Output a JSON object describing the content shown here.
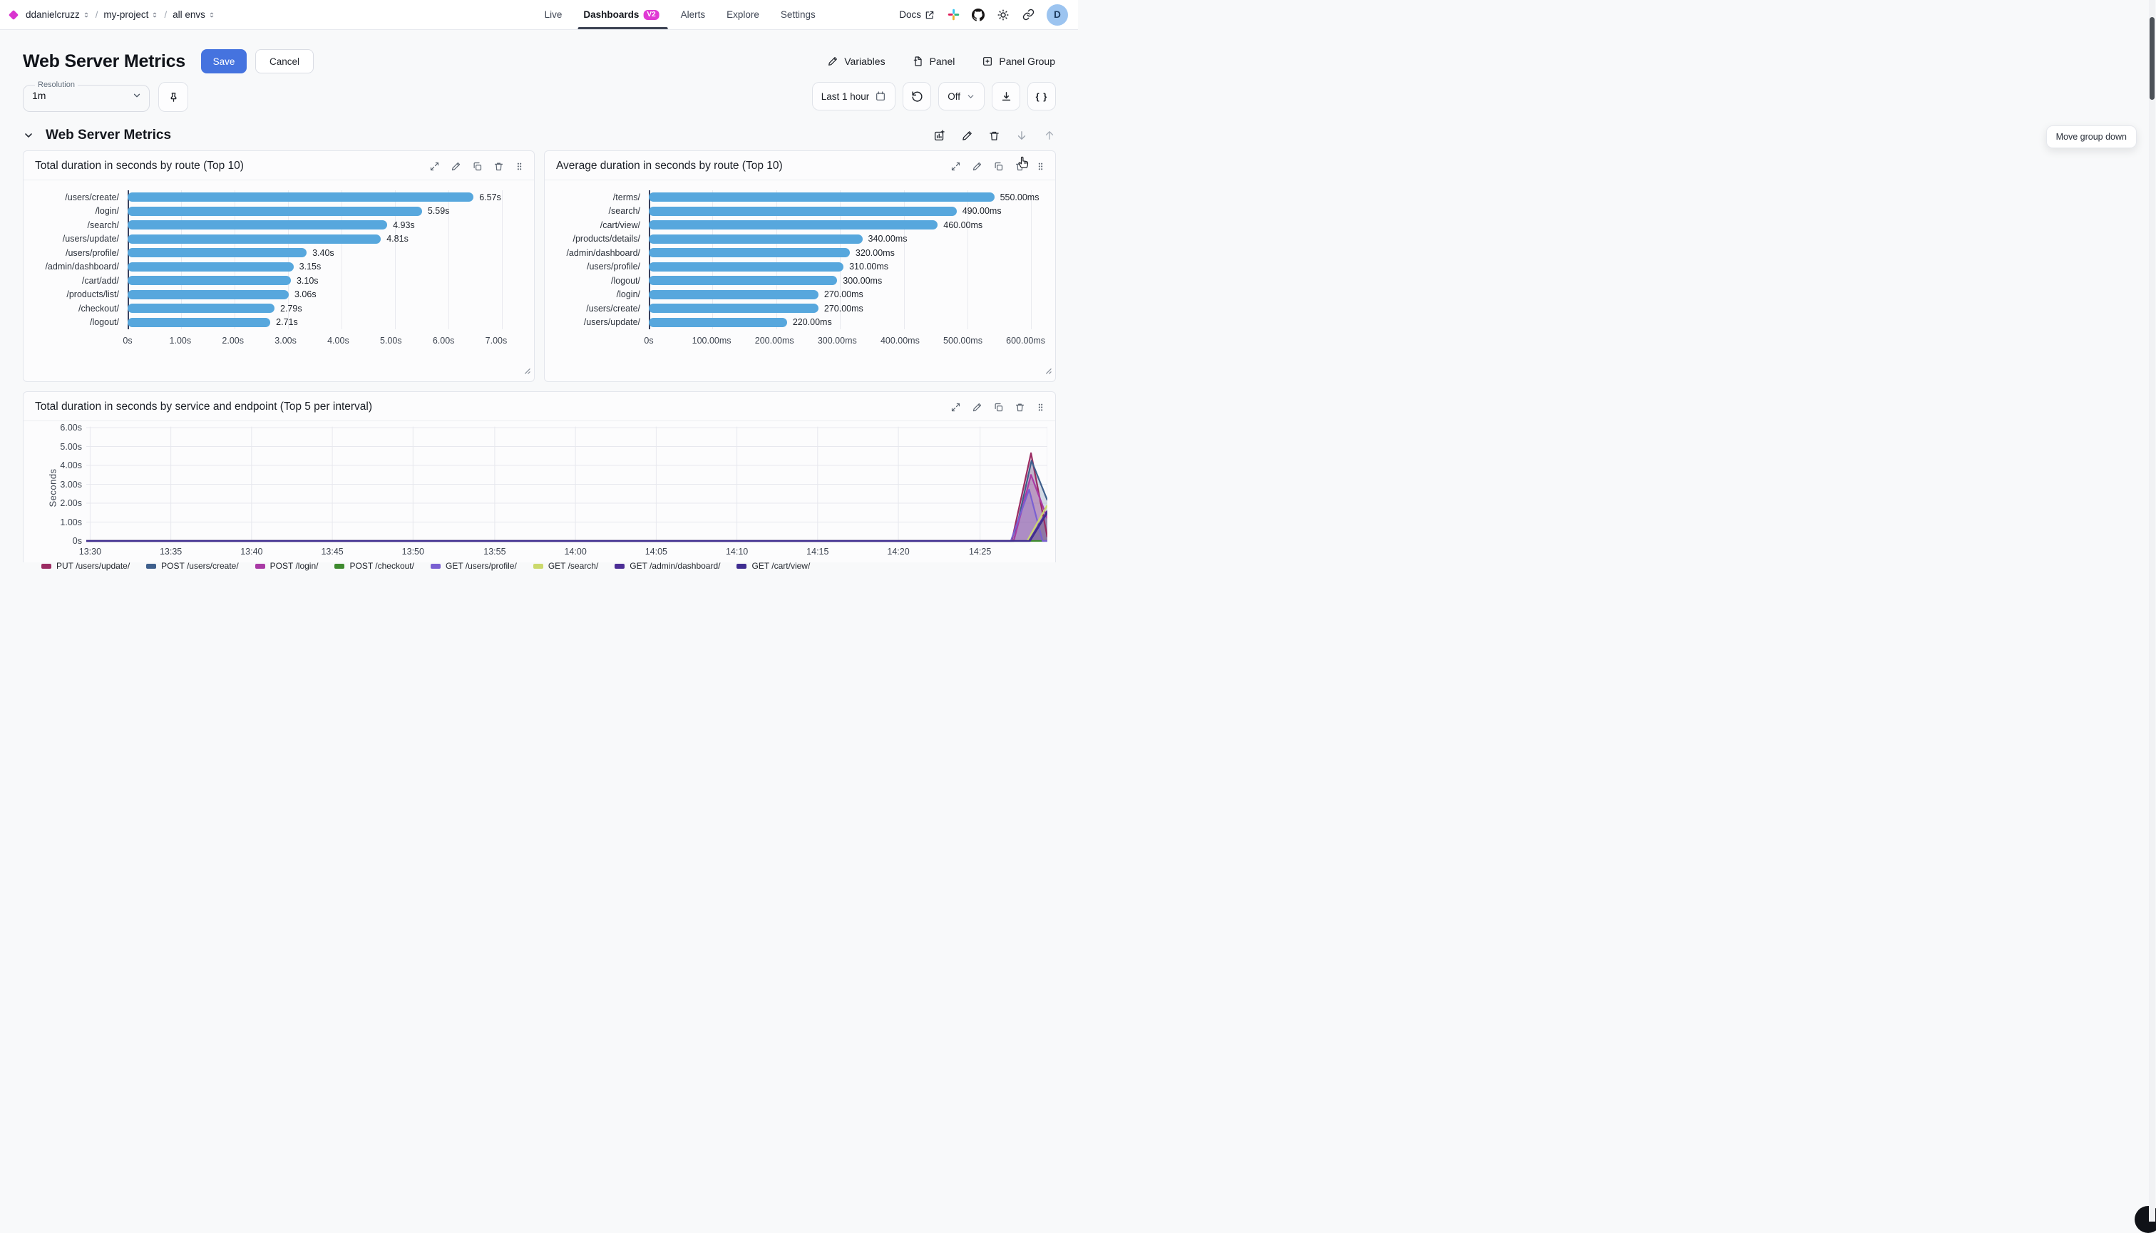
{
  "nav": {
    "breadcrumb": [
      {
        "label": "ddanielcruzz"
      },
      {
        "label": "my-project"
      },
      {
        "label": "all envs"
      }
    ],
    "tabs": [
      {
        "label": "Live"
      },
      {
        "label": "Dashboards",
        "badge": "V2",
        "active": true
      },
      {
        "label": "Alerts"
      },
      {
        "label": "Explore"
      },
      {
        "label": "Settings"
      }
    ],
    "docs_label": "Docs",
    "avatar_initial": "D"
  },
  "header": {
    "title": "Web Server Metrics",
    "save_label": "Save",
    "cancel_label": "Cancel",
    "actions": [
      {
        "label": "Variables"
      },
      {
        "label": "Panel"
      },
      {
        "label": "Panel Group"
      }
    ]
  },
  "toolbar": {
    "resolution_label": "Resolution",
    "resolution_value": "1m",
    "time_range": "Last 1 hour",
    "autorefresh_value": "Off",
    "braces_label": "{ }",
    "tooltip": "Move group down"
  },
  "group": {
    "title": "Web Server Metrics"
  },
  "colors": {
    "accent_blue": "#4573df",
    "brand_magenta": "#e03ad4",
    "bar_blue": "#57a7dd"
  },
  "chart_data": [
    {
      "type": "bar",
      "title": "Total duration in seconds by route (Top 10)",
      "orientation": "horizontal",
      "bar_color": "#57a7dd",
      "axis_max": 7.42,
      "categories": [
        "/users/create/",
        "/login/",
        "/search/",
        "/users/update/",
        "/users/profile/",
        "/admin/dashboard/",
        "/cart/add/",
        "/products/list/",
        "/checkout/",
        "/logout/"
      ],
      "values": [
        6.57,
        5.59,
        4.93,
        4.81,
        3.4,
        3.15,
        3.1,
        3.06,
        2.79,
        2.71
      ],
      "value_labels": [
        "6.57s",
        "5.59s",
        "4.93s",
        "4.81s",
        "3.40s",
        "3.15s",
        "3.10s",
        "3.06s",
        "2.79s",
        "2.71s"
      ],
      "x_ticks": {
        "values": [
          0,
          1,
          2,
          3,
          4,
          5,
          6,
          7
        ],
        "labels": [
          "0s",
          "1.00s",
          "2.00s",
          "3.00s",
          "4.00s",
          "5.00s",
          "6.00s",
          "7.00s"
        ]
      }
    },
    {
      "type": "bar",
      "title": "Average duration in seconds by route (Top 10)",
      "orientation": "horizontal",
      "bar_color": "#57a7dd",
      "axis_max": 622,
      "categories": [
        "/terms/",
        "/search/",
        "/cart/view/",
        "/products/details/",
        "/admin/dashboard/",
        "/users/profile/",
        "/logout/",
        "/login/",
        "/users/create/",
        "/users/update/"
      ],
      "values": [
        550,
        490,
        460,
        340,
        320,
        310,
        300,
        270,
        270,
        220
      ],
      "value_labels": [
        "550.00ms",
        "490.00ms",
        "460.00ms",
        "340.00ms",
        "320.00ms",
        "310.00ms",
        "300.00ms",
        "270.00ms",
        "270.00ms",
        "220.00ms"
      ],
      "x_ticks": {
        "values": [
          0,
          100,
          200,
          300,
          400,
          500,
          600
        ],
        "labels": [
          "0s",
          "100.00ms",
          "200.00ms",
          "300.00ms",
          "400.00ms",
          "500.00ms",
          "600.00ms"
        ]
      }
    },
    {
      "type": "area",
      "title": "Total duration in seconds by service and endpoint (Top 5 per interval)",
      "ylabel": "Seconds",
      "y_max": 6.2,
      "y_ticks": {
        "values": [
          0,
          1,
          2,
          3,
          4,
          5,
          6
        ],
        "labels": [
          "0s",
          "1.00s",
          "2.00s",
          "3.00s",
          "4.00s",
          "5.00s",
          "6.00s"
        ]
      },
      "x_ticks": {
        "labels": [
          "13:30",
          "13:35",
          "13:40",
          "13:45",
          "13:50",
          "13:55",
          "14:00",
          "14:05",
          "14:10",
          "14:15",
          "14:20",
          "14:25"
        ],
        "positions_pct": [
          0.4,
          8.8,
          17.2,
          25.6,
          34.0,
          42.5,
          50.9,
          59.3,
          67.7,
          76.1,
          84.5,
          93.0
        ]
      },
      "legend_position": "bottom",
      "grid": true,
      "series": [
        {
          "name": "PUT /users/update/",
          "color": "#9b2c63",
          "points_pct": [
            [
              0,
              0
            ],
            [
              96.3,
              0
            ],
            [
              98.3,
              4.65
            ],
            [
              100,
              0.2
            ]
          ]
        },
        {
          "name": "POST /users/create/",
          "color": "#3e5f8c",
          "points_pct": [
            [
              0,
              0
            ],
            [
              96.5,
              0
            ],
            [
              98.35,
              4.25
            ],
            [
              100,
              2.15
            ]
          ]
        },
        {
          "name": "POST /login/",
          "color": "#a93aa5",
          "points_pct": [
            [
              0,
              0
            ],
            [
              96.5,
              0
            ],
            [
              98.3,
              3.5
            ],
            [
              100,
              1.2
            ]
          ]
        },
        {
          "name": "POST /checkout/",
          "color": "#3e8a2e",
          "points_pct": [
            [
              0,
              0
            ],
            [
              100,
              0
            ]
          ]
        },
        {
          "name": "GET /users/profile/",
          "color": "#7a60d2",
          "points_pct": [
            [
              0,
              0
            ],
            [
              96.2,
              0
            ],
            [
              98.1,
              2.72
            ],
            [
              99.5,
              0
            ],
            [
              100,
              0
            ]
          ]
        },
        {
          "name": "GET /search/",
          "color": "#cbd96c",
          "points_pct": [
            [
              0,
              0
            ],
            [
              97.9,
              0
            ],
            [
              100,
              1.9
            ]
          ]
        },
        {
          "name": "GET /admin/dashboard/",
          "color": "#4c2e96",
          "points_pct": [
            [
              0,
              0
            ],
            [
              98.1,
              0
            ],
            [
              100,
              1.6
            ]
          ]
        },
        {
          "name": "GET /cart/view/",
          "color": "#3f2d91",
          "points_pct": [
            [
              0,
              0
            ],
            [
              98.2,
              0
            ],
            [
              100,
              1.5
            ]
          ]
        }
      ]
    }
  ]
}
